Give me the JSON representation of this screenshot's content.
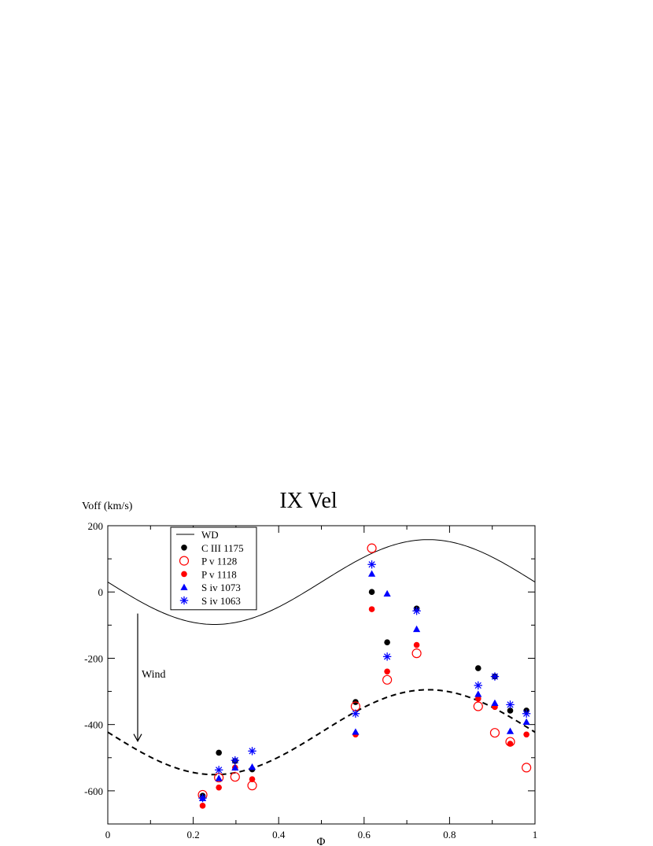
{
  "chart_data": {
    "type": "scatter",
    "title": "IX Vel",
    "xlabel": "Φ",
    "ylabel": "Voff (km/s)",
    "xlim": [
      0,
      1
    ],
    "ylim": [
      -700,
      200
    ],
    "x_ticks": [
      0,
      0.2,
      0.4,
      0.6,
      0.8,
      1
    ],
    "x_tick_labels": [
      "0",
      "0.2",
      "0.4",
      "0.6",
      "0.8",
      "1"
    ],
    "y_ticks": [
      -600,
      -400,
      -200,
      0,
      200
    ],
    "y_tick_labels": [
      "-600",
      "-400",
      "-200",
      "0",
      "200"
    ],
    "grid": false,
    "legend_position": "top-left",
    "annotation": {
      "text": "Wind",
      "arrow_x": 0.07,
      "arrow_from_y": -65,
      "arrow_to_y": -450
    },
    "curves": [
      {
        "name": "WD",
        "style": "solid",
        "color": "#000000",
        "offset": 30,
        "amplitude": 128,
        "phase_of_max": 0.75
      },
      {
        "name": "",
        "style": "dashed",
        "color": "#000000",
        "offset": -423,
        "amplitude": 128,
        "phase_of_max": 0.75
      }
    ],
    "series": [
      {
        "name": "C III 1175",
        "marker": "filled-circle",
        "color": "#000000",
        "x": [
          0.222,
          0.26,
          0.298,
          0.338,
          0.58,
          0.618,
          0.654,
          0.723,
          0.867,
          0.906,
          0.942,
          0.98
        ],
        "y": [
          -615,
          -485,
          -510,
          -535,
          -332,
          0,
          -152,
          -50,
          -230,
          -255,
          -358,
          -358
        ]
      },
      {
        "name": "P v 1128",
        "marker": "open-circle",
        "color": "#ff0000",
        "x": [
          0.222,
          0.26,
          0.298,
          0.338,
          0.58,
          0.618,
          0.654,
          0.723,
          0.867,
          0.906,
          0.942,
          0.98
        ],
        "y": [
          -612,
          -560,
          -558,
          -584,
          -345,
          132,
          -265,
          -185,
          -345,
          -425,
          -452,
          -530
        ]
      },
      {
        "name": "P v 1118",
        "marker": "filled-circle",
        "color": "#ff0000",
        "x": [
          0.222,
          0.26,
          0.298,
          0.338,
          0.58,
          0.618,
          0.654,
          0.723,
          0.867,
          0.906,
          0.942,
          0.98
        ],
        "y": [
          -645,
          -590,
          -530,
          -565,
          -430,
          -52,
          -240,
          -160,
          -322,
          -347,
          -458,
          -430
        ]
      },
      {
        "name": "S iv 1073",
        "marker": "filled-triangle",
        "color": "#0000ff",
        "x": [
          0.222,
          0.26,
          0.298,
          0.338,
          0.58,
          0.618,
          0.654,
          0.723,
          0.867,
          0.906,
          0.942,
          0.98
        ],
        "y": [
          -622,
          -562,
          -530,
          -528,
          -422,
          55,
          -5,
          -112,
          -308,
          -335,
          -420,
          -392
        ]
      },
      {
        "name": "S iv 1063",
        "marker": "asterisk",
        "color": "#0000ff",
        "x": [
          0.222,
          0.26,
          0.298,
          0.338,
          0.58,
          0.618,
          0.654,
          0.723,
          0.867,
          0.906,
          0.942,
          0.98
        ],
        "y": [
          -622,
          -537,
          -508,
          -480,
          -367,
          83,
          -195,
          -57,
          -282,
          -255,
          -340,
          -367
        ]
      }
    ]
  }
}
